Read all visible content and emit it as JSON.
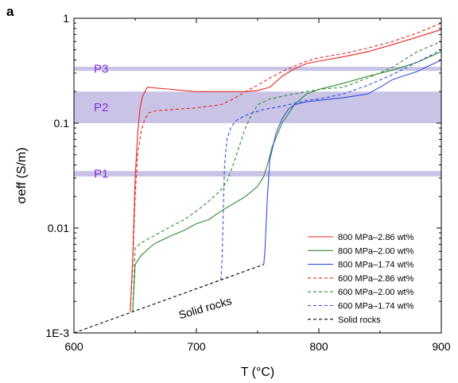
{
  "panel_label": "a",
  "chart_data": {
    "type": "line",
    "xlabel": "T (°C)",
    "ylabel": "σeff (S/m)",
    "xlim": [
      600,
      900
    ],
    "ylim": [
      0.001,
      1
    ],
    "yscale": "log",
    "x_ticks": [
      600,
      700,
      800,
      900
    ],
    "y_ticks": [
      {
        "value": 0.001,
        "label": "1E-3"
      },
      {
        "value": 0.01,
        "label": "0.01"
      },
      {
        "value": 0.1,
        "label": "0.1"
      },
      {
        "value": 1,
        "label": "1"
      }
    ],
    "grid": false,
    "legend_position": "bottom-right",
    "bands": [
      {
        "name": "P3",
        "y": [
          0.315,
          0.345
        ],
        "color": "#c9c3e6"
      },
      {
        "name": "P2",
        "y": [
          0.1,
          0.2
        ],
        "color": "#c9c3e6"
      },
      {
        "name": "P1",
        "y": [
          0.031,
          0.035
        ],
        "color": "#c9c3e6"
      }
    ],
    "annotations": [
      {
        "text": "Solid rocks",
        "x": 708,
        "y": 0.0016
      }
    ],
    "series": [
      {
        "name": "800 MPa–2.86 wt%",
        "color": "#e8251f",
        "dash": "solid",
        "x": [
          646,
          648,
          650,
          652,
          654,
          656,
          658,
          660,
          680,
          700,
          720,
          740,
          750,
          760,
          770,
          780,
          790,
          800,
          820,
          840,
          860,
          880,
          900
        ],
        "y": [
          0.0016,
          0.005,
          0.03,
          0.08,
          0.14,
          0.18,
          0.2,
          0.22,
          0.21,
          0.2,
          0.2,
          0.2,
          0.205,
          0.22,
          0.28,
          0.33,
          0.37,
          0.39,
          0.43,
          0.48,
          0.56,
          0.66,
          0.78
        ]
      },
      {
        "name": "800 MPa–2.00 wt%",
        "color": "#2e8b2e",
        "dash": "solid",
        "x": [
          648,
          650,
          655,
          660,
          665,
          670,
          680,
          690,
          700,
          710,
          720,
          730,
          740,
          750,
          755,
          758,
          762,
          770,
          780,
          790,
          800,
          820,
          840,
          860,
          880,
          900
        ],
        "y": [
          0.0016,
          0.0045,
          0.0055,
          0.0062,
          0.007,
          0.0075,
          0.0085,
          0.0095,
          0.011,
          0.012,
          0.0145,
          0.017,
          0.02,
          0.025,
          0.031,
          0.04,
          0.06,
          0.1,
          0.15,
          0.19,
          0.21,
          0.24,
          0.28,
          0.32,
          0.38,
          0.48
        ]
      },
      {
        "name": "800 MPa–1.74 wt%",
        "color": "#2f4fe0",
        "dash": "solid",
        "x": [
          755,
          756,
          758,
          760,
          765,
          770,
          775,
          780,
          790,
          800,
          820,
          840,
          850,
          860,
          880,
          900
        ],
        "y": [
          0.0045,
          0.006,
          0.02,
          0.045,
          0.08,
          0.11,
          0.135,
          0.15,
          0.16,
          0.165,
          0.175,
          0.19,
          0.22,
          0.26,
          0.31,
          0.4
        ]
      },
      {
        "name": "600 MPa–2.86 wt%",
        "color": "#e8251f",
        "dash": "dashed",
        "x": [
          646,
          648,
          650,
          652,
          655,
          658,
          661,
          665,
          680,
          700,
          720,
          730,
          740,
          750,
          760,
          770,
          780,
          790,
          800,
          820,
          840,
          860,
          880,
          900
        ],
        "y": [
          0.0016,
          0.0045,
          0.02,
          0.05,
          0.085,
          0.11,
          0.125,
          0.13,
          0.135,
          0.14,
          0.15,
          0.17,
          0.2,
          0.23,
          0.27,
          0.31,
          0.35,
          0.39,
          0.42,
          0.46,
          0.52,
          0.6,
          0.72,
          0.9
        ]
      },
      {
        "name": "600 MPa–2.00 wt%",
        "color": "#2e8b2e",
        "dash": "dashed",
        "x": [
          648,
          650,
          655,
          660,
          670,
          680,
          690,
          700,
          710,
          720,
          725,
          730,
          735,
          740,
          745,
          750,
          760,
          770,
          780,
          790,
          800,
          820,
          840,
          860,
          880,
          900
        ],
        "y": [
          0.0016,
          0.0065,
          0.0072,
          0.0078,
          0.009,
          0.0105,
          0.012,
          0.0145,
          0.018,
          0.023,
          0.028,
          0.04,
          0.06,
          0.09,
          0.12,
          0.15,
          0.17,
          0.18,
          0.19,
          0.2,
          0.21,
          0.22,
          0.27,
          0.34,
          0.48,
          0.6
        ]
      },
      {
        "name": "600 MPa–1.74 wt%",
        "color": "#2f4fe0",
        "dash": "dashed",
        "x": [
          720,
          721,
          722,
          723,
          725,
          728,
          732,
          738,
          745,
          755,
          770,
          780,
          790,
          800,
          820,
          840,
          860,
          880,
          900
        ],
        "y": [
          0.0032,
          0.005,
          0.015,
          0.04,
          0.07,
          0.09,
          0.105,
          0.115,
          0.125,
          0.135,
          0.145,
          0.155,
          0.165,
          0.17,
          0.19,
          0.23,
          0.29,
          0.38,
          0.5
        ]
      },
      {
        "name": "Solid rocks",
        "color": "#000000",
        "dash": "dashed",
        "x": [
          600,
          755
        ],
        "y": [
          0.001,
          0.0045
        ]
      }
    ]
  }
}
